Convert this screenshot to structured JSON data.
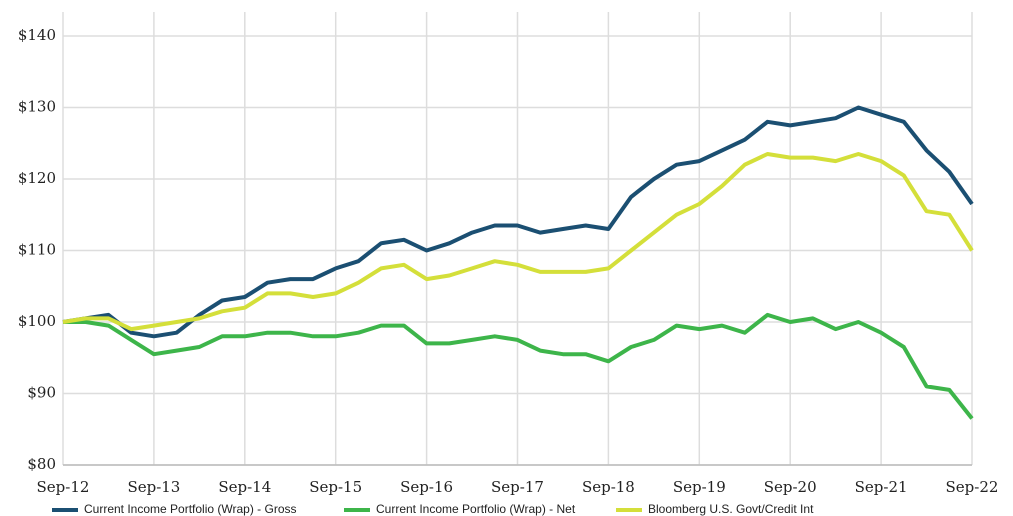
{
  "chart_data": {
    "type": "line",
    "categories": [
      "Sep-12",
      null,
      null,
      null,
      "Sep-13",
      null,
      null,
      null,
      "Sep-14",
      null,
      null,
      null,
      "Sep-15",
      null,
      null,
      null,
      "Sep-16",
      null,
      null,
      null,
      "Sep-17",
      null,
      null,
      null,
      "Sep-18",
      null,
      null,
      null,
      "Sep-19",
      null,
      null,
      null,
      "Sep-20",
      null,
      null,
      null,
      "Sep-21",
      null,
      null,
      null,
      "Sep-22"
    ],
    "series": [
      {
        "name": "Current Income Portfolio (Wrap) - Gross",
        "color": "#1b4f72",
        "values": [
          100,
          100.5,
          101,
          98.5,
          98,
          98.5,
          101,
          103,
          103.5,
          105.5,
          106,
          106,
          107.5,
          108.5,
          111,
          111.5,
          110,
          111,
          112.5,
          113.5,
          113.5,
          112.5,
          113,
          113.5,
          113,
          117.5,
          120,
          122,
          122.5,
          124,
          125.5,
          128,
          127.5,
          128,
          128.5,
          130,
          129,
          128,
          124,
          121,
          116.5
        ]
      },
      {
        "name": "Current Income Portfolio (Wrap) - Net",
        "color": "#3db54a",
        "values": [
          100,
          100,
          99.5,
          97.5,
          95.5,
          96,
          96.5,
          98,
          98,
          98.5,
          98.5,
          98,
          98,
          98.5,
          99.5,
          99.5,
          97,
          97,
          97.5,
          98,
          97.5,
          96,
          95.5,
          95.5,
          94.5,
          96.5,
          97.5,
          99.5,
          99,
          99.5,
          98.5,
          101,
          100,
          100.5,
          99,
          100,
          98.5,
          96.5,
          91,
          90.5,
          86.5
        ]
      },
      {
        "name": "Bloomberg U.S. Govt/Credit Int",
        "color": "#d4df3a",
        "values": [
          100,
          100.5,
          100.5,
          99,
          99.5,
          100,
          100.5,
          101.5,
          102,
          104,
          104,
          103.5,
          104,
          105.5,
          107.5,
          108,
          106,
          106.5,
          107.5,
          108.5,
          108,
          107,
          107,
          107,
          107.5,
          110,
          112.5,
          115,
          116.5,
          119,
          122,
          123.5,
          123,
          123,
          122.5,
          123.5,
          122.5,
          120.5,
          115.5,
          115,
          110
        ]
      }
    ],
    "ylim": [
      80,
      140
    ],
    "yticks": [
      {
        "value": 80,
        "label": "$80"
      },
      {
        "value": 90,
        "label": "$90"
      },
      {
        "value": 100,
        "label": "$100"
      },
      {
        "value": 110,
        "label": "$110"
      },
      {
        "value": 120,
        "label": "$120"
      },
      {
        "value": 130,
        "label": "$130"
      },
      {
        "value": 140,
        "label": "$140"
      }
    ],
    "grid": true,
    "legend": "bottom"
  }
}
